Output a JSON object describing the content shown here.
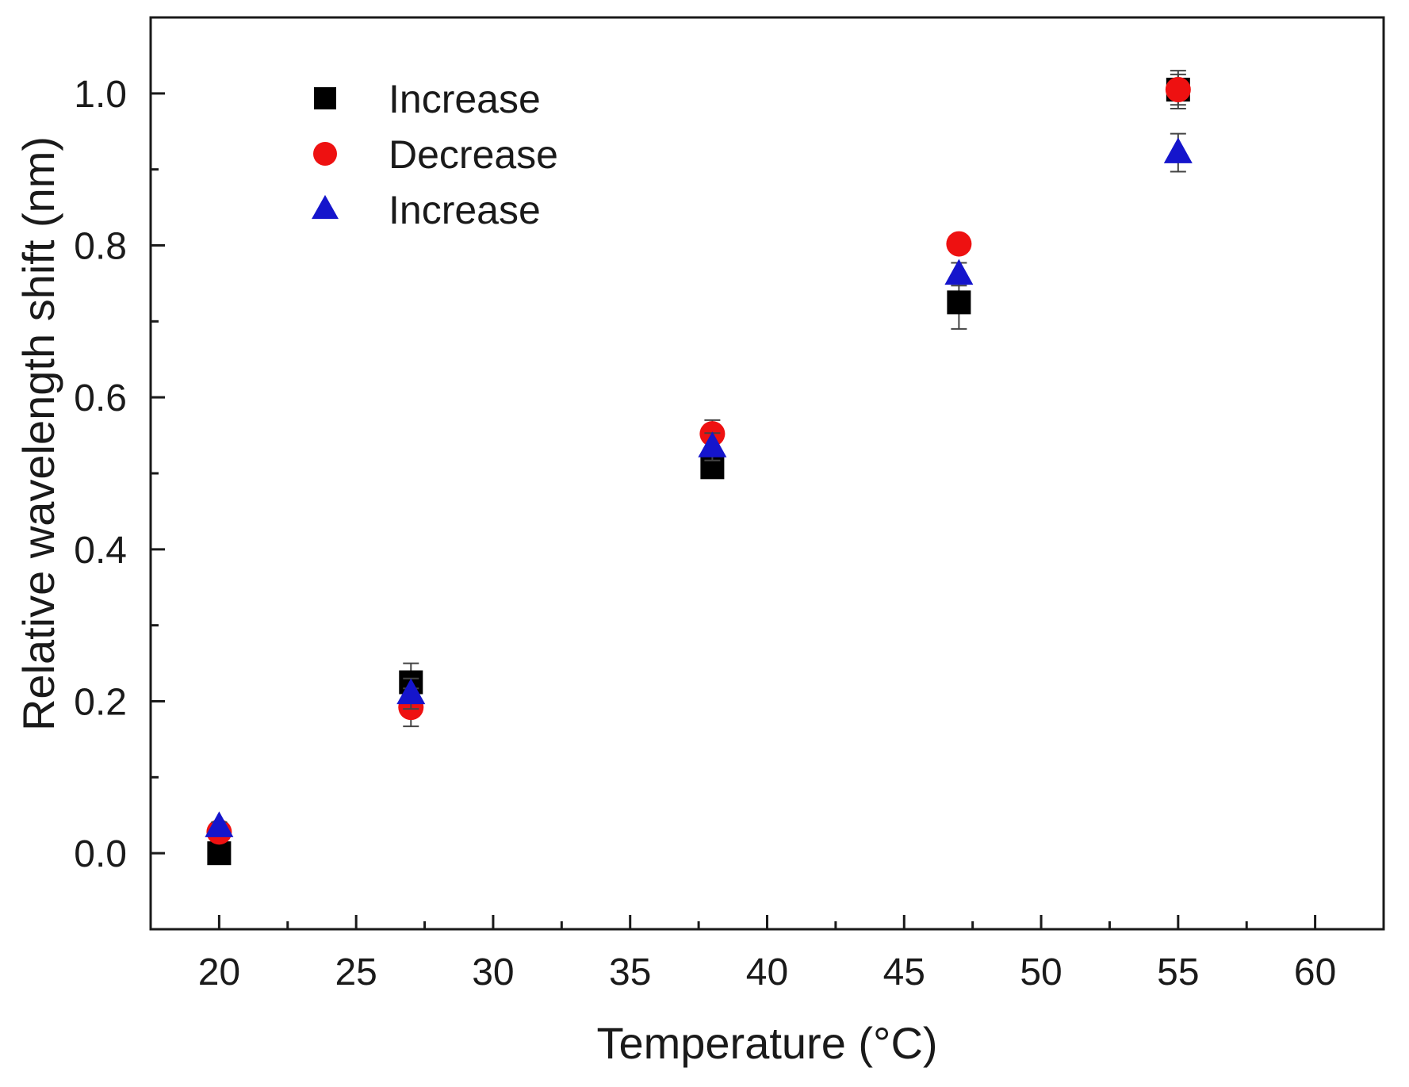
{
  "chart_data": {
    "type": "scatter",
    "title": "",
    "xlabel": "Temperature (°C)",
    "ylabel": "Relative wavelength shift (nm)",
    "xlim": [
      17.5,
      62.5
    ],
    "ylim": [
      -0.1,
      1.1
    ],
    "xticks": [
      20,
      25,
      30,
      35,
      40,
      45,
      50,
      55,
      60
    ],
    "xtick_labels": [
      "20",
      "25",
      "30",
      "35",
      "40",
      "45",
      "50",
      "55",
      "60"
    ],
    "yticks": [
      0.0,
      0.2,
      0.4,
      0.6,
      0.8,
      1.0
    ],
    "ytick_labels": [
      "0.0",
      "0.2",
      "0.4",
      "0.6",
      "0.8",
      "1.0"
    ],
    "grid": false,
    "legend_position": "top-left",
    "series": [
      {
        "name": "Increase",
        "marker": "square",
        "color": "#000000",
        "x": [
          20,
          27,
          38,
          47,
          55
        ],
        "y": [
          0.0,
          0.225,
          0.508,
          0.725,
          1.005
        ],
        "error": [
          0.006,
          0.025,
          0.01,
          0.035,
          0.02
        ]
      },
      {
        "name": "Decrease",
        "marker": "circle",
        "color": "#ee1111",
        "x": [
          20,
          27,
          38,
          47,
          55
        ],
        "y": [
          0.028,
          0.192,
          0.552,
          0.802,
          1.005
        ],
        "error": [
          0.006,
          0.025,
          0.018,
          0.01,
          0.025
        ]
      },
      {
        "name": "Increase",
        "marker": "triangle",
        "color": "#1515cc",
        "x": [
          20,
          27,
          38,
          47,
          55
        ],
        "y": [
          0.035,
          0.21,
          0.535,
          0.762,
          0.922
        ],
        "error": [
          0.006,
          0.02,
          0.018,
          0.015,
          0.025
        ]
      }
    ]
  }
}
